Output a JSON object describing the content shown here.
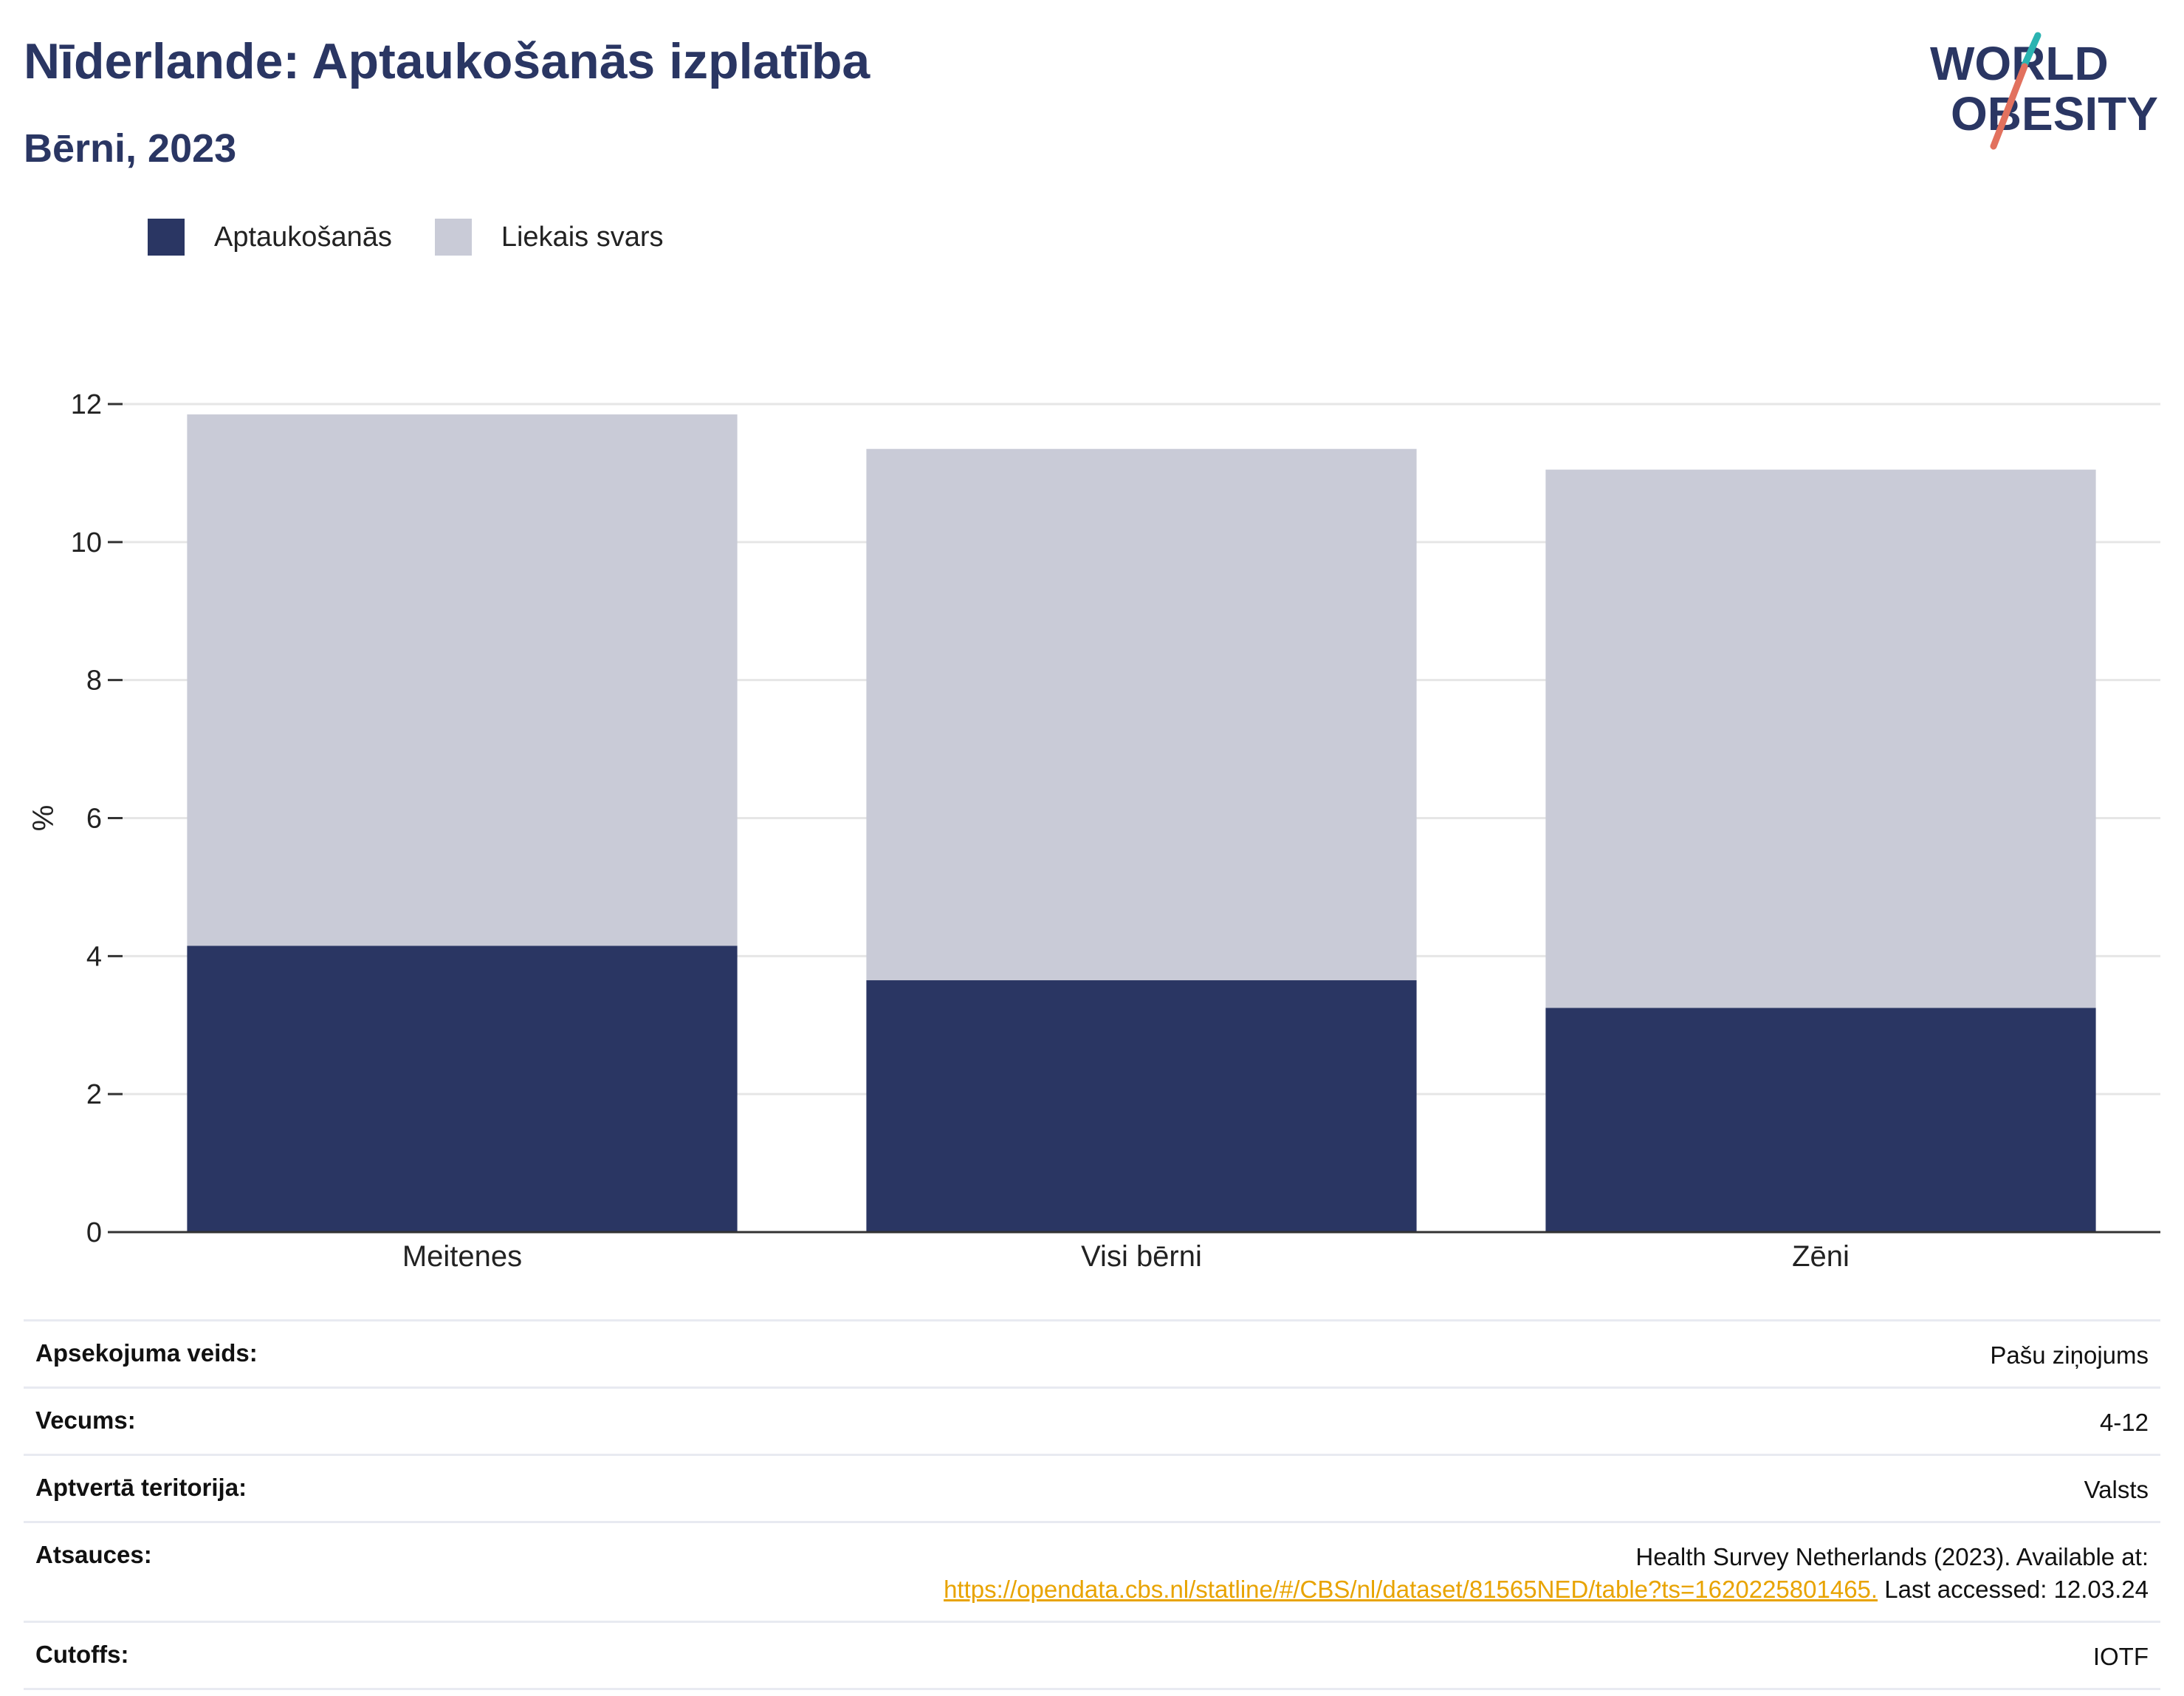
{
  "header": {
    "title": "Nīderlande: Aptaukošanās izplatība",
    "subtitle": "Bērni, 2023"
  },
  "logo": {
    "line1": "WORLD",
    "line2": "OBESITY",
    "accent_colors": [
      "#2bb3b1",
      "#e2715e"
    ]
  },
  "legend": [
    {
      "label": "Aptaukošanās",
      "color": "#2a3663"
    },
    {
      "label": "Liekais svars",
      "color": "#c9cbd7"
    }
  ],
  "chart_data": {
    "type": "bar",
    "stacked": true,
    "categories": [
      "Meitenes",
      "Visi bērni",
      "Zēni"
    ],
    "series": [
      {
        "name": "Aptaukošanās",
        "color": "#2a3663",
        "values": [
          4.15,
          3.65,
          3.25
        ]
      },
      {
        "name": "Liekais svars",
        "color": "#c9cbd7",
        "values": [
          7.7,
          7.7,
          7.8
        ]
      }
    ],
    "ylabel": "%",
    "ylim": [
      0,
      12
    ],
    "yticks": [
      0,
      2,
      4,
      6,
      8,
      10,
      12
    ],
    "grid": true,
    "legend_position": "top-left"
  },
  "meta": [
    {
      "key": "Apsekojuma veids:",
      "value": "Pašu ziņojums"
    },
    {
      "key": "Vecums:",
      "value": "4-12"
    },
    {
      "key": "Aptvertā teritorija:",
      "value": "Valsts"
    },
    {
      "key": "Atsauces:",
      "value_line1": "Health Survey Netherlands (2023). Available at:",
      "link": "https://opendata.cbs.nl/statline/#/CBS/nl/dataset/81565NED/table?ts=1620225801465.",
      "value_tail": " Last accessed: 12.03.24"
    },
    {
      "key": "Cutoffs:",
      "value": "IOTF"
    }
  ]
}
